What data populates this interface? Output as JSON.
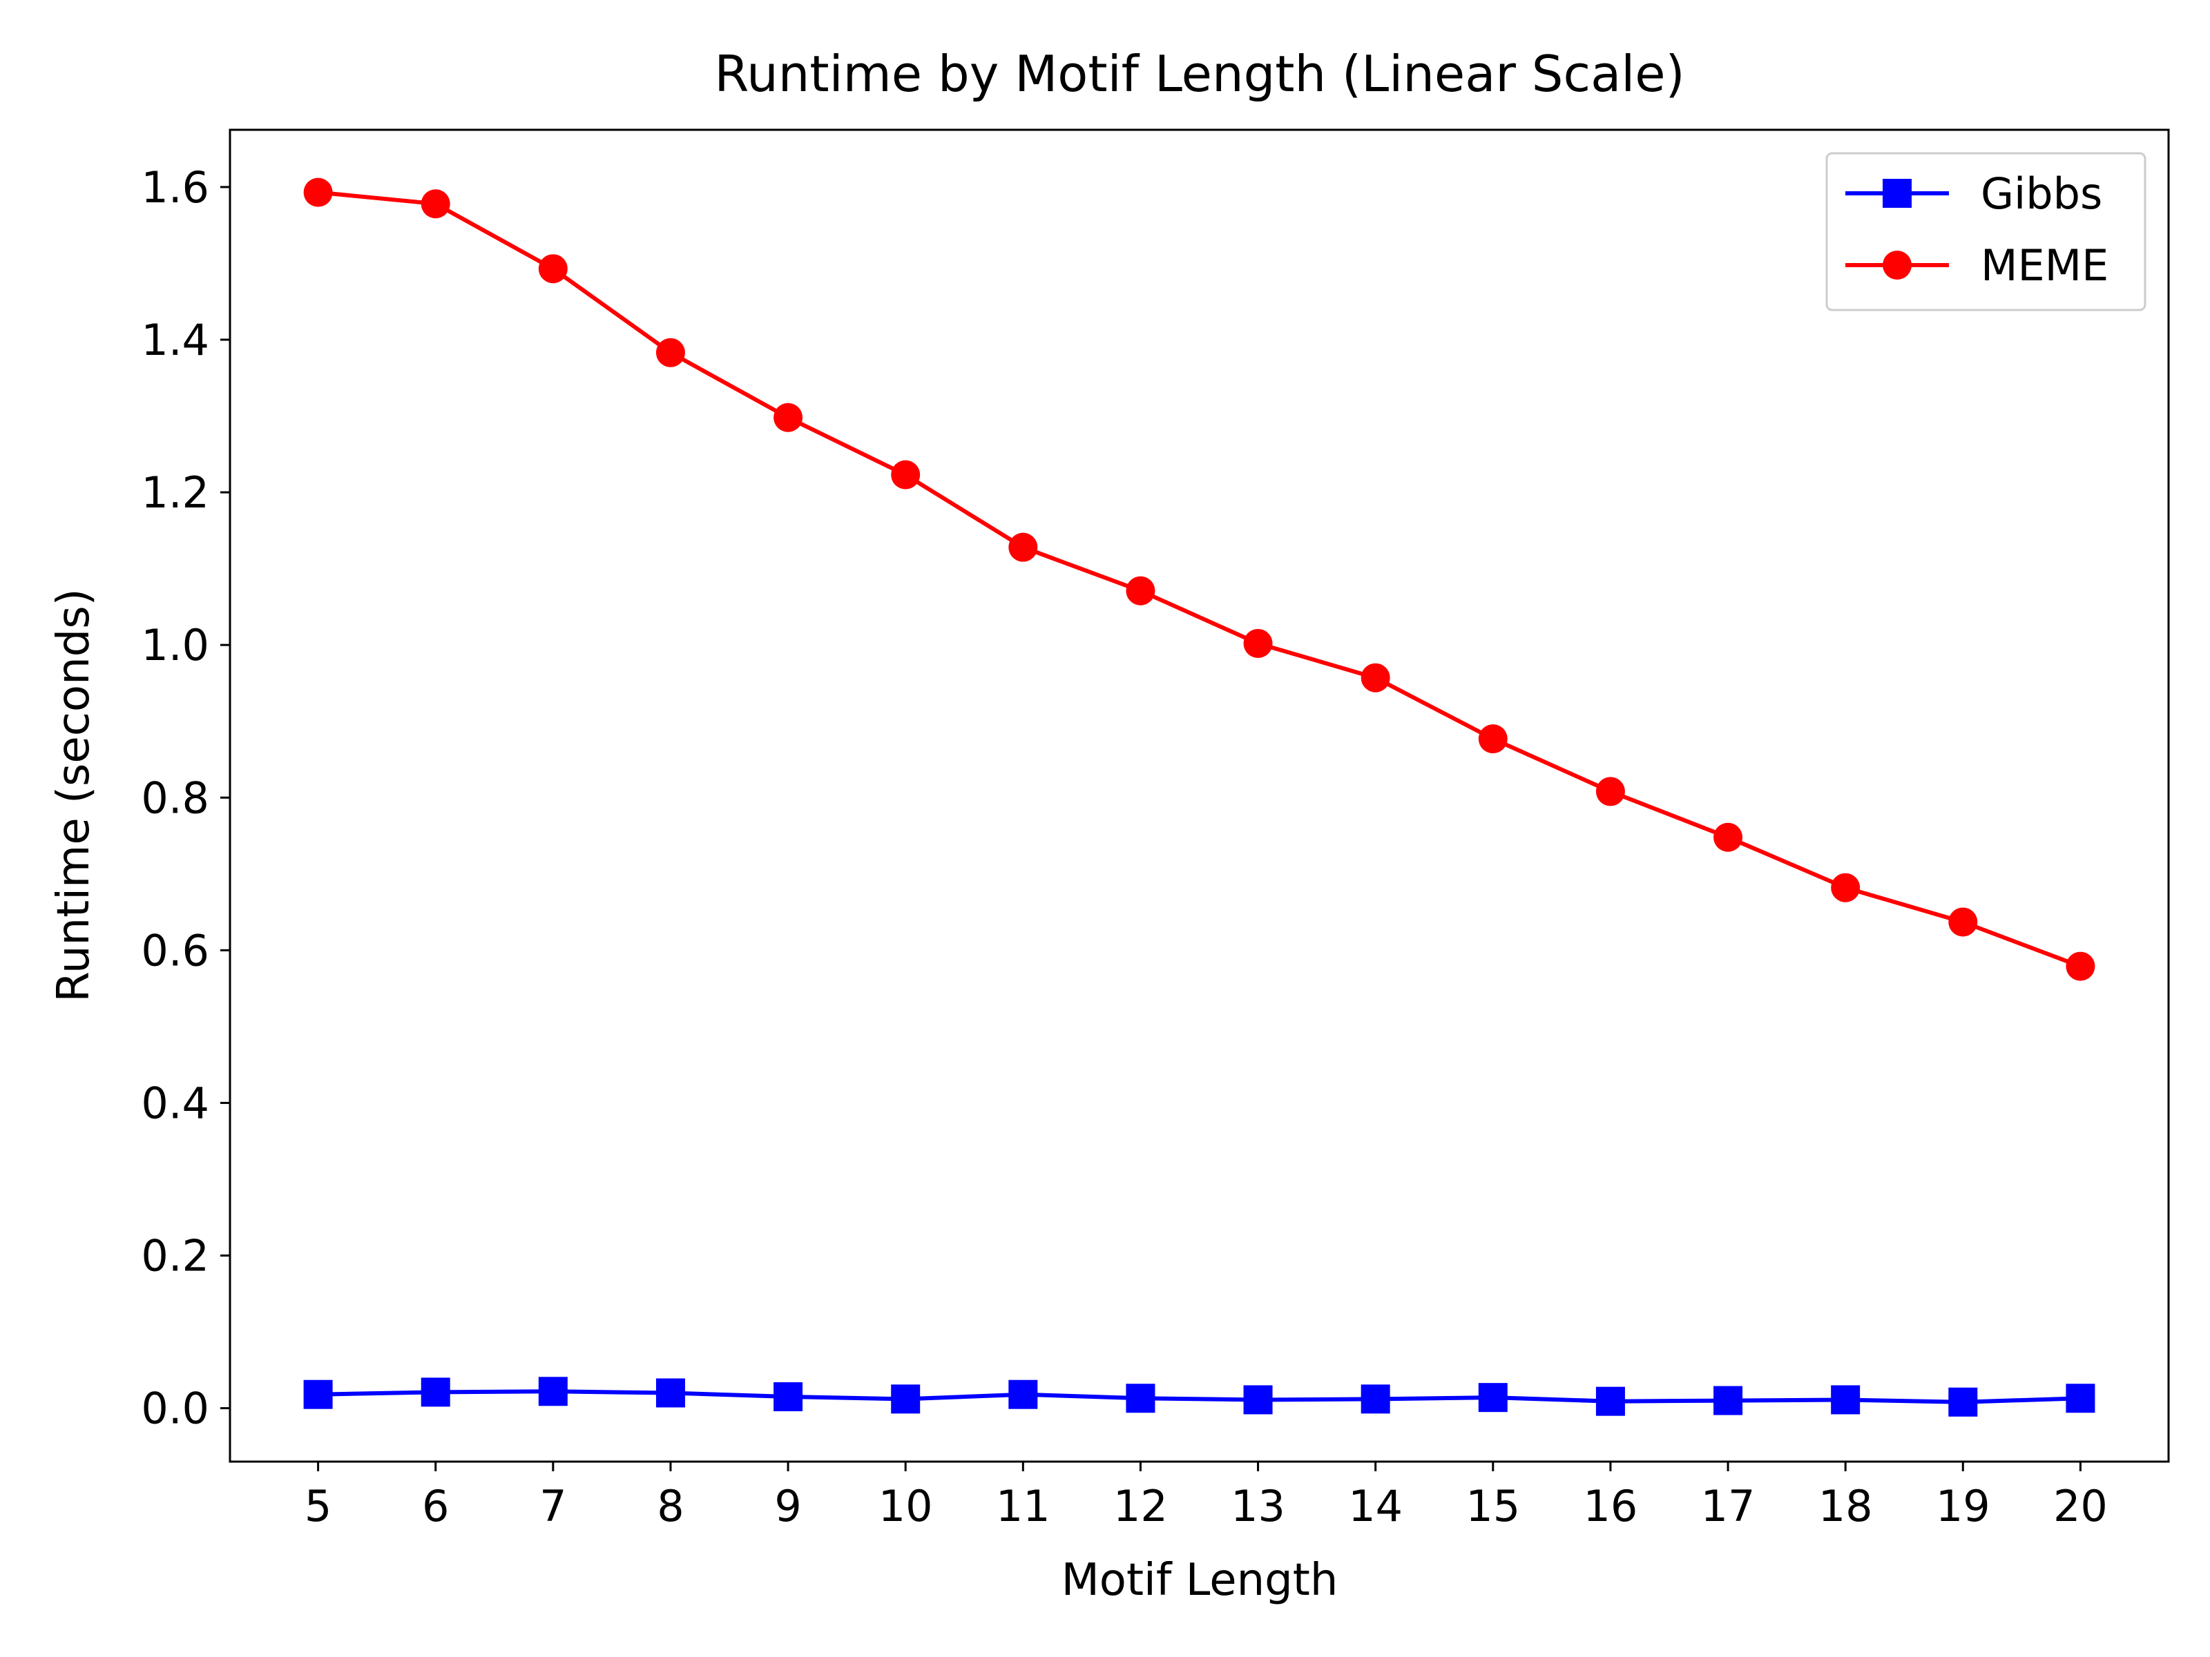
{
  "chart_data": {
    "type": "line",
    "title": "Runtime by Motif Length (Linear Scale)",
    "xlabel": "Motif Length",
    "ylabel": "Runtime (seconds)",
    "x": [
      5,
      6,
      7,
      8,
      9,
      10,
      11,
      12,
      13,
      14,
      15,
      16,
      17,
      18,
      19,
      20
    ],
    "x_ticks": [
      "5",
      "6",
      "7",
      "8",
      "9",
      "10",
      "11",
      "12",
      "13",
      "14",
      "15",
      "16",
      "17",
      "18",
      "19",
      "20"
    ],
    "xlim": [
      4.25,
      20.75
    ],
    "ylim": [
      -0.07,
      1.675
    ],
    "y_ticks": [
      "0.0",
      "0.2",
      "0.4",
      "0.6",
      "0.8",
      "1.0",
      "1.2",
      "1.4",
      "1.6"
    ],
    "y_tick_values": [
      0.0,
      0.2,
      0.4,
      0.6,
      0.8,
      1.0,
      1.2,
      1.4,
      1.6
    ],
    "grid": false,
    "legend_position": "top-right",
    "series": [
      {
        "name": "Gibbs",
        "color": "#0000ff",
        "marker": "square",
        "values": [
          0.018,
          0.021,
          0.022,
          0.02,
          0.015,
          0.012,
          0.018,
          0.013,
          0.011,
          0.012,
          0.014,
          0.009,
          0.01,
          0.011,
          0.008,
          0.013
        ]
      },
      {
        "name": "MEME",
        "color": "#ff0000",
        "marker": "circle",
        "values": [
          1.593,
          1.578,
          1.493,
          1.383,
          1.298,
          1.223,
          1.128,
          1.071,
          1.002,
          0.957,
          0.877,
          0.808,
          0.748,
          0.682,
          0.637,
          0.579
        ]
      }
    ]
  }
}
